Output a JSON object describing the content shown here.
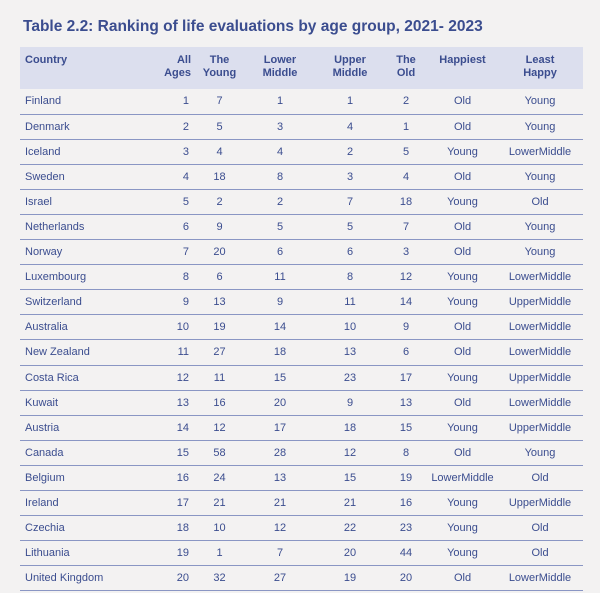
{
  "title": "Table 2.2: Ranking of life evaluations by age group, 2021- 2023",
  "headers": {
    "country": "Country",
    "all_ages": [
      "All",
      "Ages"
    ],
    "young": [
      "The",
      "Young"
    ],
    "lower_middle": [
      "Lower",
      "Middle"
    ],
    "upper_middle": [
      "Upper",
      "Middle"
    ],
    "old": [
      "The",
      "Old"
    ],
    "happiest": "Happiest",
    "least_happy": [
      "Least",
      "Happy"
    ]
  },
  "rows": [
    [
      "Finland",
      "1",
      "7",
      "1",
      "1",
      "2",
      "Old",
      "Young"
    ],
    [
      "Denmark",
      "2",
      "5",
      "3",
      "4",
      "1",
      "Old",
      "Young"
    ],
    [
      "Iceland",
      "3",
      "4",
      "4",
      "2",
      "5",
      "Young",
      "LowerMiddle"
    ],
    [
      "Sweden",
      "4",
      "18",
      "8",
      "3",
      "4",
      "Old",
      "Young"
    ],
    [
      "Israel",
      "5",
      "2",
      "2",
      "7",
      "18",
      "Young",
      "Old"
    ],
    [
      "Netherlands",
      "6",
      "9",
      "5",
      "5",
      "7",
      "Old",
      "Young"
    ],
    [
      "Norway",
      "7",
      "20",
      "6",
      "6",
      "3",
      "Old",
      "Young"
    ],
    [
      "Luxembourg",
      "8",
      "6",
      "11",
      "8",
      "12",
      "Young",
      "LowerMiddle"
    ],
    [
      "Switzerland",
      "9",
      "13",
      "9",
      "11",
      "14",
      "Young",
      "UpperMiddle"
    ],
    [
      "Australia",
      "10",
      "19",
      "14",
      "10",
      "9",
      "Old",
      "LowerMiddle"
    ],
    [
      "New Zealand",
      "11",
      "27",
      "18",
      "13",
      "6",
      "Old",
      "LowerMiddle"
    ],
    [
      "Costa Rica",
      "12",
      "11",
      "15",
      "23",
      "17",
      "Young",
      "UpperMiddle"
    ],
    [
      "Kuwait",
      "13",
      "16",
      "20",
      "9",
      "13",
      "Old",
      "LowerMiddle"
    ],
    [
      "Austria",
      "14",
      "12",
      "17",
      "18",
      "15",
      "Young",
      "UpperMiddle"
    ],
    [
      "Canada",
      "15",
      "58",
      "28",
      "12",
      "8",
      "Old",
      "Young"
    ],
    [
      "Belgium",
      "16",
      "24",
      "13",
      "15",
      "19",
      "LowerMiddle",
      "Old"
    ],
    [
      "Ireland",
      "17",
      "21",
      "21",
      "21",
      "16",
      "Young",
      "UpperMiddle"
    ],
    [
      "Czechia",
      "18",
      "10",
      "12",
      "22",
      "23",
      "Young",
      "Old"
    ],
    [
      "Lithuania",
      "19",
      "1",
      "7",
      "20",
      "44",
      "Young",
      "Old"
    ],
    [
      "United Kingdom",
      "20",
      "32",
      "27",
      "19",
      "20",
      "Old",
      "LowerMiddle"
    ]
  ]
}
